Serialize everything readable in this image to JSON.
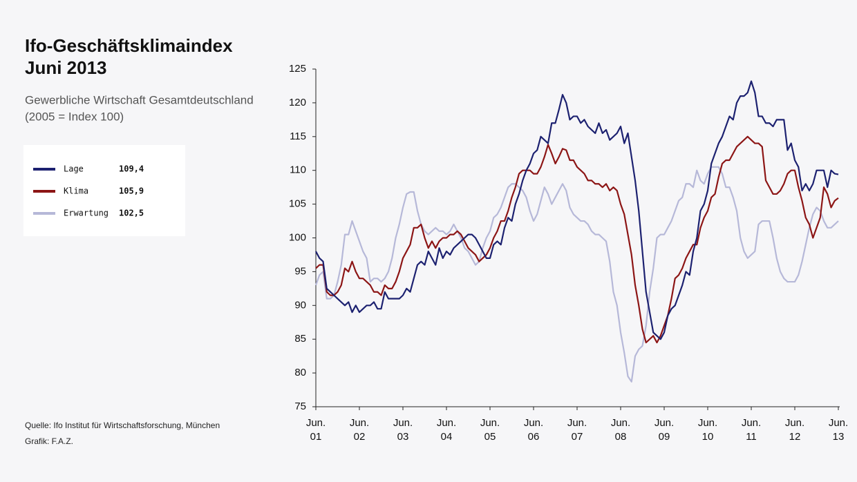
{
  "chart_data": {
    "type": "line",
    "title": "Ifo-Geschäftsklimaindex",
    "date": "Juni 2013",
    "subtitle": "Gewerbliche Wirtschaft Gesamtdeutschland",
    "subtitle_note": "(2005 = Index 100)",
    "source": "Quelle: Ifo Institut für Wirtschaftsforschung, München",
    "credit": "Grafik: F.A.Z.",
    "categories": [
      "Jun. 01",
      null,
      null,
      null,
      null,
      null,
      null,
      null,
      null,
      null,
      null,
      null,
      "Jun. 02",
      null,
      null,
      null,
      null,
      null,
      null,
      null,
      null,
      null,
      null,
      null,
      "Jun. 03",
      null,
      null,
      null,
      null,
      null,
      null,
      null,
      null,
      null,
      null,
      null,
      "Jun. 04",
      null,
      null,
      null,
      null,
      null,
      null,
      null,
      null,
      null,
      null,
      null,
      "Jun. 05",
      null,
      null,
      null,
      null,
      null,
      null,
      null,
      null,
      null,
      null,
      null,
      "Jun. 06",
      null,
      null,
      null,
      null,
      null,
      null,
      null,
      null,
      null,
      null,
      null,
      "Jun. 07",
      null,
      null,
      null,
      null,
      null,
      null,
      null,
      null,
      null,
      null,
      null,
      "Jun. 08",
      null,
      null,
      null,
      null,
      null,
      null,
      null,
      null,
      null,
      null,
      null,
      "Jun. 09",
      null,
      null,
      null,
      null,
      null,
      null,
      null,
      null,
      null,
      null,
      null,
      "Jun. 10",
      null,
      null,
      null,
      null,
      null,
      null,
      null,
      null,
      null,
      null,
      null,
      "Jun. 11",
      null,
      null,
      null,
      null,
      null,
      null,
      null,
      null,
      null,
      null,
      null,
      "Jun. 12",
      null,
      null,
      null,
      null,
      null,
      null,
      null,
      null,
      null,
      null,
      null,
      "Jun. 13"
    ],
    "ylim": [
      75,
      125
    ],
    "yticks": [
      75,
      80,
      85,
      90,
      95,
      100,
      105,
      110,
      115,
      120,
      125
    ],
    "series": [
      {
        "name": "Lage",
        "color": "#1c2170",
        "last_value_label": "109,4",
        "values": [
          98,
          97,
          96.5,
          92.5,
          92,
          91.5,
          91,
          90.5,
          90,
          90.5,
          89,
          90,
          89,
          89.5,
          90,
          90,
          90.5,
          89.5,
          89.5,
          92,
          91,
          91,
          91,
          91,
          91.5,
          92.5,
          92,
          94,
          96,
          96.5,
          96,
          98,
          97,
          96,
          98.5,
          97,
          98,
          97.5,
          98.5,
          99,
          99.5,
          100,
          100.5,
          100.5,
          100,
          99,
          98,
          97,
          97,
          99,
          99.5,
          99,
          101.5,
          103,
          102.5,
          105,
          106.5,
          108.5,
          110,
          111,
          112.5,
          113,
          115,
          114.5,
          114,
          117,
          117,
          119,
          121.2,
          120,
          117.5,
          118,
          118,
          117,
          117.5,
          116.5,
          116,
          115.5,
          117,
          115.5,
          116,
          114.5,
          115,
          115.5,
          116.5,
          114,
          115.5,
          112,
          108.5,
          104,
          98,
          92,
          89,
          86,
          85.5,
          85,
          86,
          88.5,
          89.5,
          90,
          91.5,
          93,
          95,
          94.5,
          98,
          100,
          104,
          105,
          107,
          111,
          112.5,
          114,
          115,
          116.5,
          118,
          117.5,
          120,
          121,
          121,
          121.5,
          123.2,
          121.5,
          118,
          118,
          117,
          117,
          116.5,
          117.5,
          117.5,
          117.5,
          113,
          114,
          111.5,
          110.5,
          107,
          108,
          107,
          108,
          110,
          110,
          110,
          107.5,
          110,
          109.5,
          109.4
        ]
      },
      {
        "name": "Klima",
        "color": "#8c1515",
        "last_value_label": "105,9",
        "values": [
          95.5,
          96,
          96,
          92,
          91.5,
          91.5,
          92,
          93,
          95.5,
          95,
          96.5,
          95,
          94,
          94,
          93.5,
          93,
          92,
          92,
          91.5,
          93,
          92.5,
          92.5,
          93.5,
          95,
          97,
          98,
          99,
          101.5,
          101.5,
          102,
          100,
          98.5,
          99.5,
          98.5,
          99.5,
          100,
          100,
          100.5,
          100.5,
          101,
          100.5,
          99.5,
          98.5,
          98,
          97.5,
          96.5,
          97,
          97.5,
          98.5,
          100,
          101,
          102.5,
          102.5,
          104,
          106,
          107.5,
          109.5,
          110,
          110,
          110,
          109.5,
          109.5,
          110.5,
          112,
          113.8,
          112.5,
          111,
          112,
          113.2,
          113,
          111.5,
          111.5,
          110.5,
          110,
          109.5,
          108.5,
          108.5,
          108,
          108,
          107.5,
          108,
          107,
          107.5,
          107,
          105,
          103.5,
          100.5,
          97.5,
          93,
          90,
          86.5,
          84.5,
          85,
          85.5,
          84.5,
          85.5,
          87,
          88.5,
          91,
          94,
          94.5,
          95.5,
          97,
          98,
          99,
          99,
          101.5,
          103,
          104,
          106,
          106.5,
          109,
          111,
          111.5,
          111.5,
          112.5,
          113.5,
          114,
          114.5,
          115,
          114.5,
          114,
          114,
          113.5,
          108.5,
          107.5,
          106.5,
          106.5,
          107,
          108,
          109.5,
          110,
          110,
          107.5,
          105.5,
          103,
          102,
          100,
          101.5,
          103,
          107.5,
          106.5,
          104.5,
          105.5,
          105.9
        ]
      },
      {
        "name": "Erwartung",
        "color": "#b6b8d8",
        "last_value_label": "102,5",
        "values": [
          93,
          94.5,
          95,
          91,
          91,
          91.5,
          93.5,
          96,
          100.5,
          100.5,
          102.5,
          101,
          99.5,
          98,
          97,
          93.5,
          94,
          94,
          93.5,
          94,
          95,
          97,
          100,
          102,
          104.5,
          106.5,
          106.8,
          106.8,
          104,
          102,
          101,
          100.5,
          101,
          101.5,
          101,
          101,
          100.5,
          101,
          102,
          101,
          100,
          98.5,
          98,
          97,
          96,
          96.5,
          98.5,
          100,
          101,
          103,
          103.5,
          104.5,
          106,
          107.5,
          108,
          108,
          107.5,
          107,
          106,
          104,
          102.5,
          103.5,
          105.5,
          107.5,
          106.5,
          105,
          106,
          107,
          108,
          107,
          104.5,
          103.5,
          103,
          102.5,
          102.5,
          102,
          101,
          100.5,
          100.5,
          100,
          99.5,
          96.5,
          92,
          90,
          86,
          83,
          79.5,
          78.7,
          82.5,
          83.5,
          84,
          87,
          92,
          95.5,
          100,
          100.5,
          100.5,
          101.5,
          102.5,
          104,
          105.5,
          106,
          108,
          108,
          107.5,
          110,
          108.5,
          108,
          109.5,
          110.5,
          110.5,
          110.5,
          109.5,
          107.5,
          107.5,
          106,
          104,
          100,
          98,
          97,
          97.5,
          98,
          102,
          102.5,
          102.5,
          102.5,
          100,
          97,
          95,
          94,
          93.5,
          93.5,
          93.5,
          94.5,
          96.5,
          99,
          101.5,
          103.5,
          104.5,
          104,
          102.5,
          101.5,
          101.5,
          102,
          102.5
        ]
      }
    ]
  }
}
